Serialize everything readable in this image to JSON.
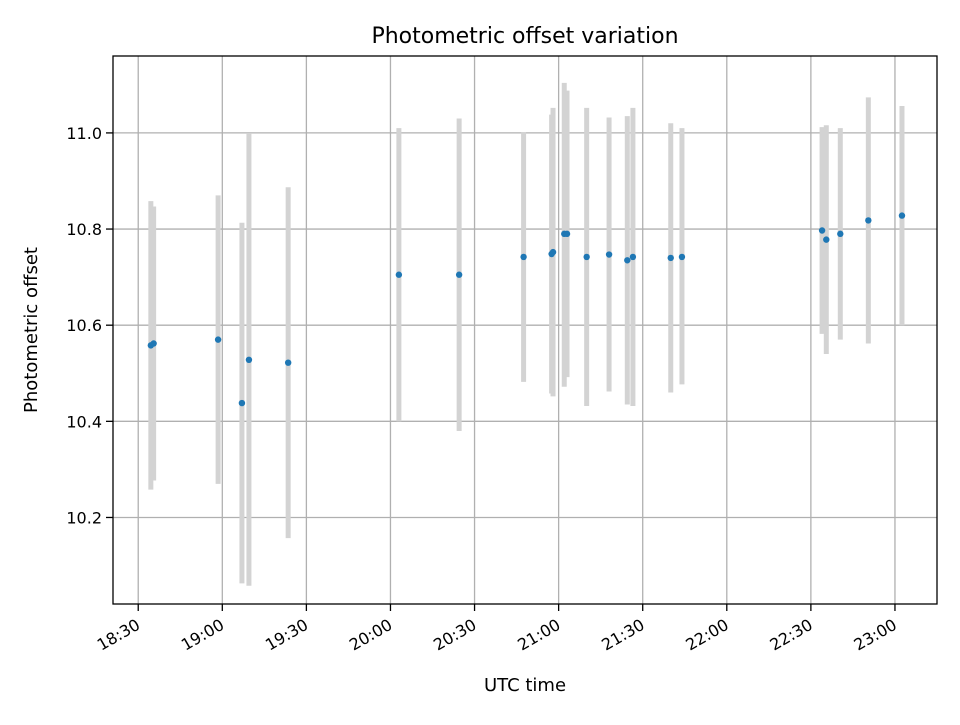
{
  "chart_data": {
    "type": "scatter",
    "title": "Photometric offset variation",
    "xlabel": "UTC time",
    "ylabel": "Photometric offset",
    "x_ticks": [
      "18:30",
      "19:00",
      "19:30",
      "20:00",
      "20:30",
      "21:00",
      "21:30",
      "22:00",
      "22:30",
      "23:00"
    ],
    "y_ticks": [
      "10.2",
      "10.4",
      "10.6",
      "10.8",
      "11.0"
    ],
    "xlim": [
      "18:21",
      "23:15"
    ],
    "ylim": [
      10.02,
      11.16
    ],
    "grid": true,
    "colors": {
      "points": "#1f77b4",
      "errorbars": "#d3d3d3",
      "grid": "#b0b0b0"
    },
    "points": [
      {
        "x": "18:34.5",
        "y": 10.558,
        "ylo": 10.258,
        "yhi": 10.858
      },
      {
        "x": "18:35.5",
        "y": 10.562,
        "ylo": 10.277,
        "yhi": 10.847
      },
      {
        "x": "18:58.5",
        "y": 10.57,
        "ylo": 10.27,
        "yhi": 10.87
      },
      {
        "x": "19:07",
        "y": 10.438,
        "ylo": 10.063,
        "yhi": 10.813
      },
      {
        "x": "19:09.5",
        "y": 10.528,
        "ylo": 10.058,
        "yhi": 10.998
      },
      {
        "x": "19:23.5",
        "y": 10.522,
        "ylo": 10.157,
        "yhi": 10.887
      },
      {
        "x": "20:03",
        "y": 10.705,
        "ylo": 10.4,
        "yhi": 11.01
      },
      {
        "x": "20:24.5",
        "y": 10.705,
        "ylo": 10.38,
        "yhi": 11.03
      },
      {
        "x": "20:47.5",
        "y": 10.742,
        "ylo": 10.482,
        "yhi": 11.002
      },
      {
        "x": "20:57.5",
        "y": 10.748,
        "ylo": 10.458,
        "yhi": 11.038
      },
      {
        "x": "20:58",
        "y": 10.752,
        "ylo": 10.452,
        "yhi": 11.052
      },
      {
        "x": "21:02",
        "y": 10.79,
        "ylo": 10.472,
        "yhi": 11.104
      },
      {
        "x": "21:03",
        "y": 10.79,
        "ylo": 10.492,
        "yhi": 11.088
      },
      {
        "x": "21:10",
        "y": 10.742,
        "ylo": 10.432,
        "yhi": 11.052
      },
      {
        "x": "21:18",
        "y": 10.747,
        "ylo": 10.462,
        "yhi": 11.032
      },
      {
        "x": "21:24.5",
        "y": 10.735,
        "ylo": 10.435,
        "yhi": 11.035
      },
      {
        "x": "21:26.5",
        "y": 10.742,
        "ylo": 10.432,
        "yhi": 11.052
      },
      {
        "x": "21:40",
        "y": 10.74,
        "ylo": 10.46,
        "yhi": 11.02
      },
      {
        "x": "21:44",
        "y": 10.742,
        "ylo": 10.477,
        "yhi": 11.01
      },
      {
        "x": "22:34",
        "y": 10.797,
        "ylo": 10.582,
        "yhi": 11.012
      },
      {
        "x": "22:35.5",
        "y": 10.778,
        "ylo": 10.54,
        "yhi": 11.016
      },
      {
        "x": "22:40.5",
        "y": 10.79,
        "ylo": 10.57,
        "yhi": 11.01
      },
      {
        "x": "22:50.5",
        "y": 10.818,
        "ylo": 10.562,
        "yhi": 11.074
      },
      {
        "x": "23:02.5",
        "y": 10.828,
        "ylo": 10.6,
        "yhi": 11.056
      }
    ]
  }
}
